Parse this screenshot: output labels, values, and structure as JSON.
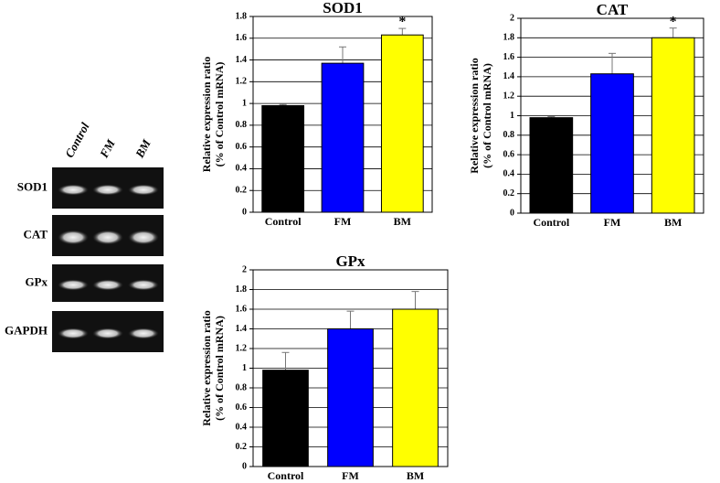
{
  "gel": {
    "lanes": [
      "Control",
      "FM",
      "BM"
    ],
    "genes": [
      "SOD1",
      "CAT",
      "GPx",
      "GAPDH"
    ]
  },
  "chart_data": [
    {
      "type": "bar",
      "title": "SOD1",
      "ylabel": [
        "Relative expression ratio",
        "(% of Control mRNA)"
      ],
      "categories": [
        "Control",
        "FM",
        "BM"
      ],
      "values": [
        0.98,
        1.37,
        1.63
      ],
      "errors": [
        0.01,
        0.15,
        0.06
      ],
      "value_annotations": [
        null,
        null,
        "*"
      ],
      "colors": [
        "#000000",
        "#0000ff",
        "#ffff00"
      ],
      "ylim": [
        0,
        1.8
      ],
      "yticks": [
        0,
        0.2,
        0.4,
        0.6,
        0.8,
        1,
        1.2,
        1.4,
        1.6,
        1.8
      ],
      "grid": true
    },
    {
      "type": "bar",
      "title": "CAT",
      "ylabel": [
        "Relative expression ratio",
        "(% of Control mRNA)"
      ],
      "categories": [
        "Control",
        "FM",
        "BM"
      ],
      "values": [
        0.98,
        1.43,
        1.8
      ],
      "errors": [
        0.01,
        0.21,
        0.1
      ],
      "value_annotations": [
        null,
        null,
        "*"
      ],
      "colors": [
        "#000000",
        "#0000ff",
        "#ffff00"
      ],
      "ylim": [
        0,
        2
      ],
      "yticks": [
        0,
        0.2,
        0.4,
        0.6,
        0.8,
        1,
        1.2,
        1.4,
        1.6,
        1.8,
        2
      ],
      "grid": true
    },
    {
      "type": "bar",
      "title": "GPx",
      "ylabel": [
        "Relative expression ratio",
        "(% of Control mRNA)"
      ],
      "categories": [
        "Control",
        "FM",
        "BM"
      ],
      "values": [
        0.98,
        1.4,
        1.6
      ],
      "errors": [
        0.18,
        0.18,
        0.18
      ],
      "value_annotations": [
        null,
        null,
        null
      ],
      "colors": [
        "#000000",
        "#0000ff",
        "#ffff00"
      ],
      "ylim": [
        0,
        2
      ],
      "yticks": [
        0,
        0.2,
        0.4,
        0.6,
        0.8,
        1,
        1.2,
        1.4,
        1.6,
        1.8,
        2
      ],
      "grid": true
    }
  ]
}
